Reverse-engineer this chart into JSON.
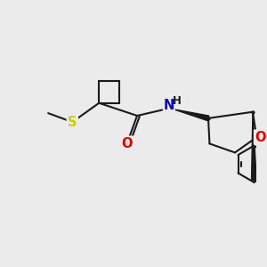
{
  "background_color": "#ebebeb",
  "line_color": "#1a1a1a",
  "line_width": 1.5,
  "atom_colors": {
    "O": "#dd0000",
    "N": "#0000cc",
    "S": "#cccc00",
    "H": "#1a1a1a"
  },
  "font_size": 9.5,
  "figsize": [
    3.0,
    3.0
  ],
  "dpi": 100,
  "xlim": [
    0,
    10
  ],
  "ylim": [
    -1,
    9
  ]
}
